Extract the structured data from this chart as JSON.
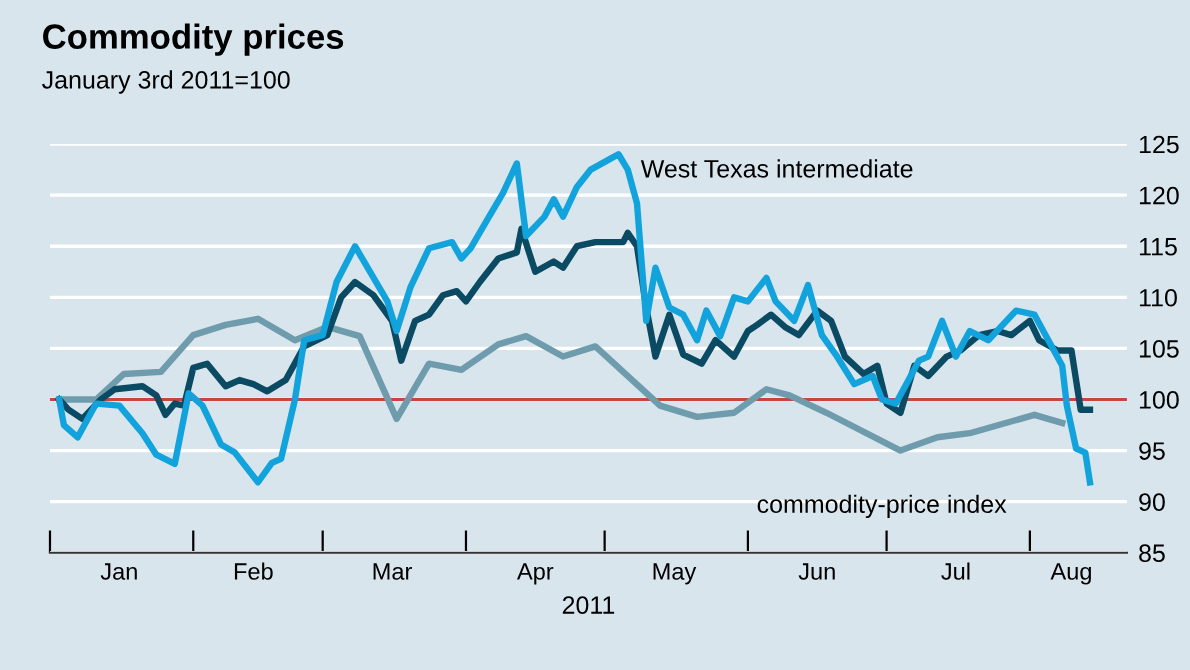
{
  "chart_data": {
    "type": "line",
    "title": "Commodity prices",
    "subtitle": "January 3rd 2011=100",
    "xlabel": "2011",
    "xlim": [
      "2011-01-01",
      "2011-08-22"
    ],
    "xticks": [
      {
        "value": "2011-01-01",
        "label": null
      },
      {
        "value": "2011-01-16",
        "label": "Jan"
      },
      {
        "value": "2011-02-01",
        "label": null
      },
      {
        "value": "2011-02-14",
        "label": "Feb"
      },
      {
        "value": "2011-03-01",
        "label": null
      },
      {
        "value": "2011-03-16",
        "label": "Mar"
      },
      {
        "value": "2011-04-01",
        "label": null
      },
      {
        "value": "2011-04-16",
        "label": "Apr"
      },
      {
        "value": "2011-05-01",
        "label": null
      },
      {
        "value": "2011-05-16",
        "label": "May"
      },
      {
        "value": "2011-06-01",
        "label": null
      },
      {
        "value": "2011-06-16",
        "label": "Jun"
      },
      {
        "value": "2011-07-01",
        "label": null
      },
      {
        "value": "2011-07-16",
        "label": "Jul"
      },
      {
        "value": "2011-08-01",
        "label": null
      },
      {
        "value": "2011-08-10",
        "label": "Aug"
      }
    ],
    "ylim": [
      85,
      125
    ],
    "yticks": [
      85,
      90,
      95,
      100,
      105,
      110,
      115,
      120,
      125
    ],
    "grid": "y",
    "legend": false,
    "marker": "none",
    "line_style": "solid",
    "ref_lines": [
      {
        "axis": "y",
        "value": 100,
        "color": "#c8453b"
      }
    ],
    "series": [
      {
        "name": "commodity-price index",
        "color": "#6f9cad",
        "x": [
          "2011-01-03",
          "2011-01-11",
          "2011-01-17",
          "2011-01-25",
          "2011-02-01",
          "2011-02-08",
          "2011-02-15",
          "2011-02-23",
          "2011-03-02",
          "2011-03-09",
          "2011-03-17",
          "2011-03-24",
          "2011-03-31",
          "2011-04-08",
          "2011-04-14",
          "2011-04-22",
          "2011-04-29",
          "2011-05-13",
          "2011-05-21",
          "2011-05-29",
          "2011-06-05",
          "2011-06-10",
          "2011-06-18",
          "2011-07-04",
          "2011-07-12",
          "2011-07-19",
          "2011-08-02",
          "2011-08-08"
        ],
        "values": [
          100,
          100,
          102.5,
          102.7,
          106.3,
          107.3,
          107.9,
          105.8,
          107.1,
          106.2,
          98.1,
          103.5,
          102.9,
          105.4,
          106.2,
          104.2,
          105.2,
          99.4,
          98.3,
          98.7,
          101,
          100.4,
          98.7,
          95,
          96.3,
          96.7,
          98.5,
          97.7
        ]
      },
      {
        "color": "#0b4a63",
        "x": [
          "2011-01-03",
          "2011-01-05",
          "2011-01-08",
          "2011-01-12",
          "2011-01-15",
          "2011-01-21",
          "2011-01-24",
          "2011-01-26",
          "2011-01-28",
          "2011-01-30",
          "2011-02-01",
          "2011-02-04",
          "2011-02-08",
          "2011-02-11",
          "2011-02-14",
          "2011-02-17",
          "2011-02-21",
          "2011-02-25",
          "2011-03-02",
          "2011-03-05",
          "2011-03-08",
          "2011-03-12",
          "2011-03-16",
          "2011-03-18",
          "2011-03-21",
          "2011-03-24",
          "2011-03-27",
          "2011-03-30",
          "2011-04-01",
          "2011-04-04",
          "2011-04-08",
          "2011-04-12",
          "2011-04-13",
          "2011-04-16",
          "2011-04-20",
          "2011-04-22",
          "2011-04-25",
          "2011-04-29",
          "2011-05-05",
          "2011-05-06",
          "2011-05-08",
          "2011-05-10",
          "2011-05-12",
          "2011-05-15",
          "2011-05-18",
          "2011-05-22",
          "2011-05-25",
          "2011-05-29",
          "2011-06-01",
          "2011-06-03",
          "2011-06-06",
          "2011-06-09",
          "2011-06-12",
          "2011-06-16",
          "2011-06-19",
          "2011-06-22",
          "2011-06-26",
          "2011-06-29",
          "2011-07-01",
          "2011-07-04",
          "2011-07-07",
          "2011-07-10",
          "2011-07-14",
          "2011-07-17",
          "2011-07-21",
          "2011-07-25",
          "2011-07-28",
          "2011-08-01",
          "2011-08-03",
          "2011-08-07",
          "2011-08-10",
          "2011-08-12",
          "2011-08-14"
        ],
        "values": [
          100,
          99,
          98.1,
          100,
          101,
          101.3,
          100.4,
          98.5,
          99.6,
          99.4,
          103.1,
          103.5,
          101.3,
          101.9,
          101.5,
          100.8,
          101.9,
          105.2,
          106.3,
          110,
          111.5,
          110.2,
          107.7,
          103.8,
          107.7,
          108.3,
          110.2,
          110.6,
          109.6,
          111.5,
          113.8,
          114.4,
          116.7,
          112.5,
          113.5,
          112.9,
          115,
          115.4,
          115.4,
          116.3,
          115,
          109,
          104.2,
          108.3,
          104.4,
          103.5,
          105.8,
          104.2,
          106.7,
          107.3,
          108.3,
          107.1,
          106.3,
          108.7,
          107.7,
          104.2,
          102.5,
          103.3,
          99.6,
          98.7,
          103.3,
          102.3,
          104.2,
          104.8,
          106.3,
          106.7,
          106.3,
          107.7,
          105.8,
          104.8,
          104.8,
          99,
          99
        ]
      },
      {
        "name": "West Texas intermediate",
        "color": "#12a3dc",
        "x": [
          "2011-01-03",
          "2011-01-04",
          "2011-01-07",
          "2011-01-11",
          "2011-01-16",
          "2011-01-21",
          "2011-01-24",
          "2011-01-28",
          "2011-01-31",
          "2011-02-03",
          "2011-02-07",
          "2011-02-10",
          "2011-02-15",
          "2011-02-18",
          "2011-02-20",
          "2011-02-23",
          "2011-02-25",
          "2011-03-01",
          "2011-03-04",
          "2011-03-08",
          "2011-03-15",
          "2011-03-17",
          "2011-03-20",
          "2011-03-24",
          "2011-03-29",
          "2011-03-31",
          "2011-04-02",
          "2011-04-06",
          "2011-04-09",
          "2011-04-12",
          "2011-04-14",
          "2011-04-18",
          "2011-04-20",
          "2011-04-22",
          "2011-04-25",
          "2011-04-28",
          "2011-05-02",
          "2011-05-04",
          "2011-05-06",
          "2011-05-08",
          "2011-05-10",
          "2011-05-12",
          "2011-05-15",
          "2011-05-18",
          "2011-05-21",
          "2011-05-23",
          "2011-05-26",
          "2011-05-29",
          "2011-06-01",
          "2011-06-05",
          "2011-06-07",
          "2011-06-11",
          "2011-06-14",
          "2011-06-17",
          "2011-06-20",
          "2011-06-24",
          "2011-06-28",
          "2011-06-30",
          "2011-07-03",
          "2011-07-08",
          "2011-07-10",
          "2011-07-13",
          "2011-07-16",
          "2011-07-19",
          "2011-07-23",
          "2011-07-29",
          "2011-08-02",
          "2011-08-05",
          "2011-08-08",
          "2011-08-09",
          "2011-08-11",
          "2011-08-13",
          "2011-08-14"
        ],
        "values": [
          100,
          97.5,
          96.3,
          99.6,
          99.4,
          96.7,
          94.6,
          93.7,
          100.6,
          99.4,
          95.6,
          94.8,
          91.9,
          93.8,
          94.2,
          100,
          105.8,
          106.3,
          111.5,
          115,
          109.6,
          106.7,
          111,
          114.8,
          115.4,
          113.8,
          114.8,
          117.9,
          120.2,
          123.1,
          116,
          117.9,
          119.6,
          117.9,
          120.8,
          122.5,
          123.5,
          124,
          122.5,
          119.2,
          107.7,
          112.9,
          109,
          108.3,
          105.8,
          108.7,
          106.2,
          110,
          109.6,
          111.9,
          109.6,
          107.7,
          111.2,
          106.3,
          104.4,
          101.5,
          102.3,
          100,
          99.6,
          103.8,
          104.2,
          107.7,
          104.2,
          106.7,
          105.8,
          108.7,
          108.3,
          105.8,
          103.3,
          99.4,
          95.2,
          94.8,
          91.9
        ]
      }
    ]
  }
}
